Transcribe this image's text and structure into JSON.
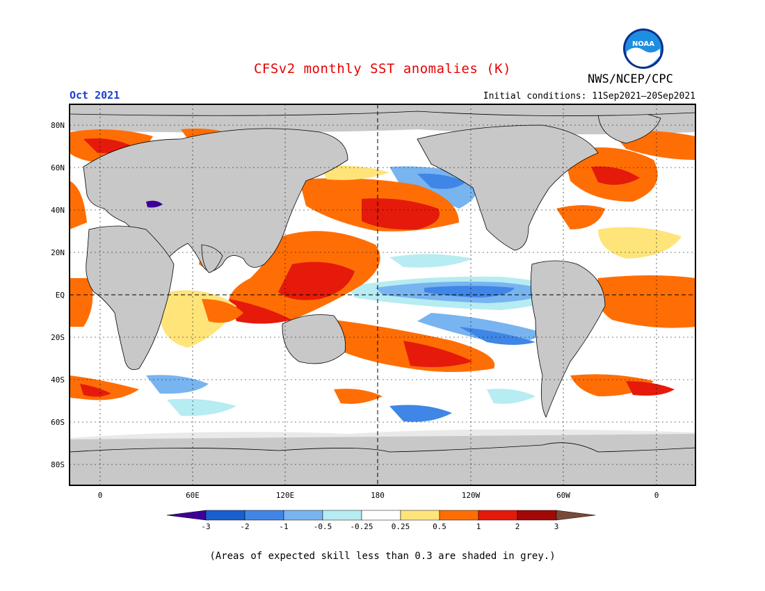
{
  "title": "CFSv2 monthly SST anomalies (K)",
  "agency": "NWS/NCEP/CPC",
  "logo_text": "NOAA",
  "valid_month": "Oct 2021",
  "initial_conditions": "Initial conditions: 11Sep2021–20Sep2021",
  "footnote": "(Areas of expected skill less than 0.3 are shaded in grey.)",
  "map": {
    "lat_labels": [
      "80N",
      "60N",
      "40N",
      "20N",
      "EQ",
      "20S",
      "40S",
      "60S",
      "80S"
    ],
    "lon_labels": [
      "0",
      "60E",
      "120E",
      "180",
      "120W",
      "60W",
      "0"
    ],
    "land_color": "#c8c8c8",
    "low_skill_color": "#c8c8c8"
  },
  "colorbar": {
    "labels": [
      "-3",
      "-2",
      "-1",
      "-0.5",
      "-0.25",
      "0.25",
      "0.5",
      "1",
      "2",
      "3"
    ],
    "colors": [
      "#3d0099",
      "#1a5fd0",
      "#3f86e6",
      "#78b4f0",
      "#b6ecf2",
      "#ffffff",
      "#ffe47a",
      "#ff6e05",
      "#e51a0b",
      "#a20806",
      "#7a4a38"
    ]
  },
  "chart_data": {
    "type": "heatmap",
    "title": "CFSv2 monthly SST anomalies (K)",
    "valid": "Oct 2021",
    "initial_conditions": "11Sep2021–20Sep2021",
    "units": "K",
    "x_ticks": [
      "0",
      "60E",
      "120E",
      "180",
      "120W",
      "60W",
      "0"
    ],
    "y_ticks": [
      "80N",
      "60N",
      "40N",
      "20N",
      "EQ",
      "20S",
      "40S",
      "60S",
      "80S"
    ],
    "color_levels": [
      -3,
      -2,
      -1,
      -0.5,
      -0.25,
      0.25,
      0.5,
      1,
      2,
      3
    ],
    "features": [
      {
        "region": "equatorial central-eastern Pacific",
        "anomaly": "-1 to -0.5"
      },
      {
        "region": "North Pacific near 35N 180-150W",
        "anomaly": "1 to 2"
      },
      {
        "region": "western Pacific warm pool / Maritime Continent",
        "anomaly": "1 to 2"
      },
      {
        "region": "South Pacific near 30S 160W",
        "anomaly": "1 to 2"
      },
      {
        "region": "tropical Atlantic",
        "anomaly": "0.5 to 1"
      }
    ]
  }
}
